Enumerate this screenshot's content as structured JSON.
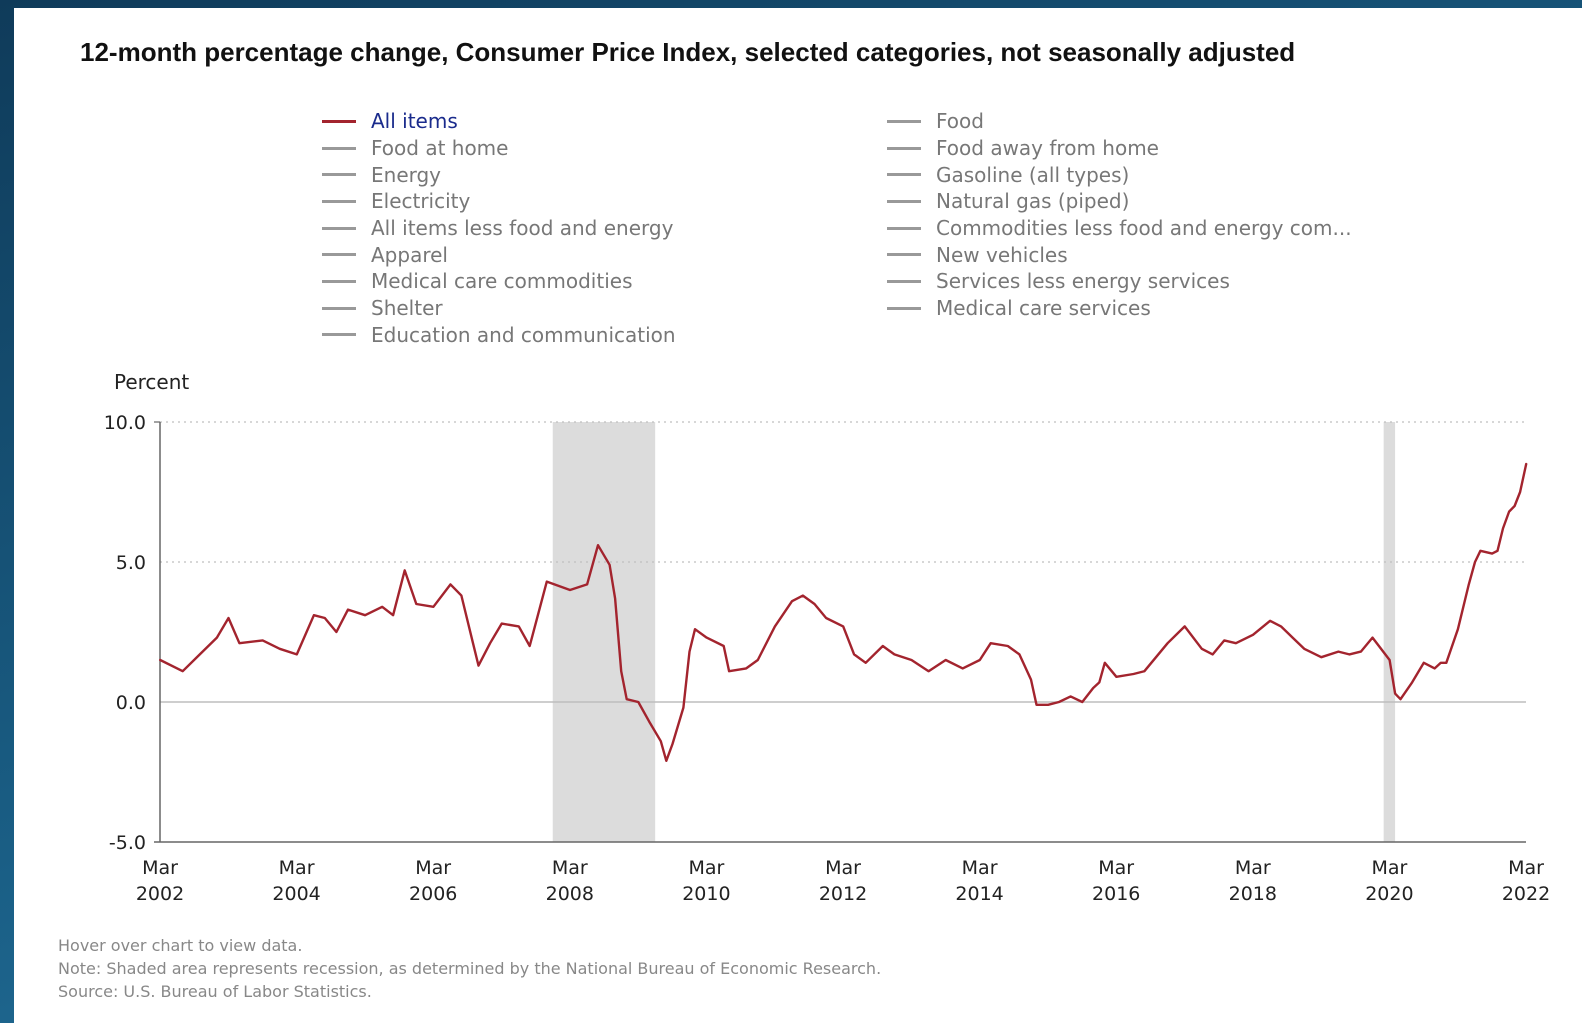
{
  "chart_data": {
    "type": "line",
    "title": "12-month percentage change, Consumer Price Index, selected categories, not seasonally adjusted",
    "ylabel": "Percent",
    "ylim": [
      -5,
      10
    ],
    "yticks": [
      "10.0",
      "5.0",
      "0.0",
      "-5.0"
    ],
    "yticks_values": [
      10,
      5,
      0,
      -5
    ],
    "xlim": [
      2002.167,
      2022.167
    ],
    "xticks": [
      {
        "month": "Mar",
        "year": "2002",
        "value": 2002.167
      },
      {
        "month": "Mar",
        "year": "2004",
        "value": 2004.167
      },
      {
        "month": "Mar",
        "year": "2006",
        "value": 2006.167
      },
      {
        "month": "Mar",
        "year": "2008",
        "value": 2008.167
      },
      {
        "month": "Mar",
        "year": "2010",
        "value": 2010.167
      },
      {
        "month": "Mar",
        "year": "2012",
        "value": 2012.167
      },
      {
        "month": "Mar",
        "year": "2014",
        "value": 2014.167
      },
      {
        "month": "Mar",
        "year": "2016",
        "value": 2016.167
      },
      {
        "month": "Mar",
        "year": "2018",
        "value": 2018.167
      },
      {
        "month": "Mar",
        "year": "2020",
        "value": 2020.167
      },
      {
        "month": "Mar",
        "year": "2022",
        "value": 2022.167
      }
    ],
    "gridlines": "horizontal-dotted",
    "recessions": [
      [
        2007.917,
        2009.417
      ],
      [
        2020.083,
        2020.25
      ]
    ],
    "series": [
      {
        "name": "All items",
        "color": "#a3242e",
        "points": [
          [
            2002.17,
            1.5
          ],
          [
            2002.5,
            1.1
          ],
          [
            2002.75,
            1.7
          ],
          [
            2003.0,
            2.3
          ],
          [
            2003.17,
            3.0
          ],
          [
            2003.33,
            2.1
          ],
          [
            2003.67,
            2.2
          ],
          [
            2003.92,
            1.9
          ],
          [
            2004.17,
            1.7
          ],
          [
            2004.42,
            3.1
          ],
          [
            2004.58,
            3.0
          ],
          [
            2004.75,
            2.5
          ],
          [
            2004.92,
            3.3
          ],
          [
            2005.17,
            3.1
          ],
          [
            2005.42,
            3.4
          ],
          [
            2005.58,
            3.1
          ],
          [
            2005.75,
            4.7
          ],
          [
            2005.92,
            3.5
          ],
          [
            2006.17,
            3.4
          ],
          [
            2006.42,
            4.2
          ],
          [
            2006.58,
            3.8
          ],
          [
            2006.75,
            2.1
          ],
          [
            2006.83,
            1.3
          ],
          [
            2007.0,
            2.1
          ],
          [
            2007.17,
            2.8
          ],
          [
            2007.42,
            2.7
          ],
          [
            2007.58,
            2.0
          ],
          [
            2007.83,
            4.3
          ],
          [
            2008.17,
            4.0
          ],
          [
            2008.42,
            4.2
          ],
          [
            2008.58,
            5.6
          ],
          [
            2008.75,
            4.9
          ],
          [
            2008.83,
            3.7
          ],
          [
            2008.92,
            1.1
          ],
          [
            2009.0,
            0.1
          ],
          [
            2009.17,
            0.0
          ],
          [
            2009.33,
            -0.7
          ],
          [
            2009.5,
            -1.4
          ],
          [
            2009.58,
            -2.1
          ],
          [
            2009.67,
            -1.5
          ],
          [
            2009.83,
            -0.2
          ],
          [
            2009.92,
            1.8
          ],
          [
            2010.0,
            2.6
          ],
          [
            2010.17,
            2.3
          ],
          [
            2010.42,
            2.0
          ],
          [
            2010.5,
            1.1
          ],
          [
            2010.75,
            1.2
          ],
          [
            2010.92,
            1.5
          ],
          [
            2011.17,
            2.7
          ],
          [
            2011.42,
            3.6
          ],
          [
            2011.58,
            3.8
          ],
          [
            2011.75,
            3.5
          ],
          [
            2011.92,
            3.0
          ],
          [
            2012.17,
            2.7
          ],
          [
            2012.33,
            1.7
          ],
          [
            2012.5,
            1.4
          ],
          [
            2012.75,
            2.0
          ],
          [
            2012.92,
            1.7
          ],
          [
            2013.17,
            1.5
          ],
          [
            2013.42,
            1.1
          ],
          [
            2013.67,
            1.5
          ],
          [
            2013.92,
            1.2
          ],
          [
            2014.17,
            1.5
          ],
          [
            2014.33,
            2.1
          ],
          [
            2014.58,
            2.0
          ],
          [
            2014.75,
            1.7
          ],
          [
            2014.92,
            0.8
          ],
          [
            2015.0,
            -0.1
          ],
          [
            2015.17,
            -0.1
          ],
          [
            2015.33,
            0.0
          ],
          [
            2015.5,
            0.2
          ],
          [
            2015.67,
            0.0
          ],
          [
            2015.83,
            0.5
          ],
          [
            2015.92,
            0.7
          ],
          [
            2016.0,
            1.4
          ],
          [
            2016.17,
            0.9
          ],
          [
            2016.42,
            1.0
          ],
          [
            2016.58,
            1.1
          ],
          [
            2016.75,
            1.6
          ],
          [
            2016.92,
            2.1
          ],
          [
            2017.17,
            2.7
          ],
          [
            2017.42,
            1.9
          ],
          [
            2017.58,
            1.7
          ],
          [
            2017.75,
            2.2
          ],
          [
            2017.92,
            2.1
          ],
          [
            2018.17,
            2.4
          ],
          [
            2018.42,
            2.9
          ],
          [
            2018.58,
            2.7
          ],
          [
            2018.75,
            2.3
          ],
          [
            2018.92,
            1.9
          ],
          [
            2019.17,
            1.6
          ],
          [
            2019.42,
            1.8
          ],
          [
            2019.58,
            1.7
          ],
          [
            2019.75,
            1.8
          ],
          [
            2019.92,
            2.3
          ],
          [
            2020.17,
            1.5
          ],
          [
            2020.25,
            0.3
          ],
          [
            2020.33,
            0.1
          ],
          [
            2020.5,
            0.7
          ],
          [
            2020.67,
            1.4
          ],
          [
            2020.83,
            1.2
          ],
          [
            2020.92,
            1.4
          ],
          [
            2021.0,
            1.4
          ],
          [
            2021.17,
            2.6
          ],
          [
            2021.33,
            4.2
          ],
          [
            2021.42,
            5.0
          ],
          [
            2021.5,
            5.4
          ],
          [
            2021.67,
            5.3
          ],
          [
            2021.75,
            5.4
          ],
          [
            2021.83,
            6.2
          ],
          [
            2021.92,
            6.8
          ],
          [
            2022.0,
            7.0
          ],
          [
            2022.08,
            7.5
          ],
          [
            2022.17,
            8.5
          ]
        ]
      }
    ]
  },
  "legend": {
    "left": [
      {
        "label": "All items",
        "active": true
      },
      {
        "label": "Food at home",
        "active": false
      },
      {
        "label": "Energy",
        "active": false
      },
      {
        "label": "Electricity",
        "active": false
      },
      {
        "label": "All items less food and energy",
        "active": false
      },
      {
        "label": "Apparel",
        "active": false
      },
      {
        "label": "Medical care commodities",
        "active": false
      },
      {
        "label": "Shelter",
        "active": false
      },
      {
        "label": "Education and communication",
        "active": false
      }
    ],
    "right": [
      {
        "label": "Food",
        "active": false
      },
      {
        "label": "Food away from home",
        "active": false
      },
      {
        "label": "Gasoline (all types)",
        "active": false
      },
      {
        "label": "Natural gas (piped)",
        "active": false
      },
      {
        "label": "Commodities less food and energy com...",
        "active": false
      },
      {
        "label": "New vehicles",
        "active": false
      },
      {
        "label": "Services less energy services",
        "active": false
      },
      {
        "label": "Medical care services",
        "active": false
      }
    ]
  },
  "footnotes": {
    "hover": "Hover over chart to view data.",
    "note": "Note: Shaded area represents recession, as determined by the National Bureau of Economic Research.",
    "source": "Source: U.S. Bureau of Labor Statistics."
  }
}
